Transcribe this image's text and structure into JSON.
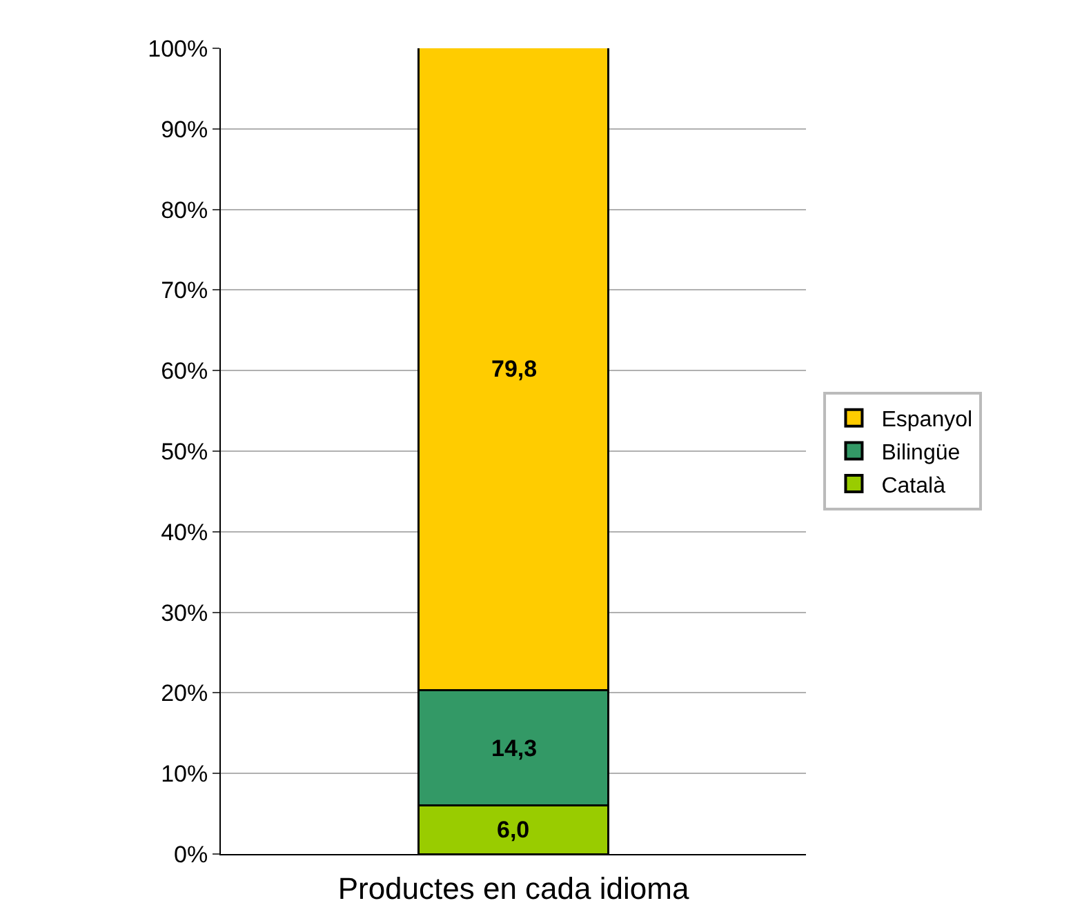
{
  "chart_data": {
    "type": "bar",
    "stacked": true,
    "xlabel": "Productes en cada idioma",
    "categories": [
      null
    ],
    "series": [
      {
        "name": "Català",
        "color": "#99cc00",
        "values": [
          6.0
        ],
        "value_labels": [
          "6,0"
        ]
      },
      {
        "name": "Bilingüe",
        "color": "#339966",
        "values": [
          14.3
        ],
        "value_labels": [
          "14,3"
        ]
      },
      {
        "name": "Espanyol",
        "color": "#ffcc00",
        "values": [
          79.8
        ],
        "value_labels": [
          "79,8"
        ]
      }
    ],
    "ylim": [
      0,
      100
    ],
    "yticks": [
      {
        "value": 0,
        "label": "0%"
      },
      {
        "value": 10,
        "label": "10%"
      },
      {
        "value": 20,
        "label": "20%"
      },
      {
        "value": 30,
        "label": "30%"
      },
      {
        "value": 40,
        "label": "40%"
      },
      {
        "value": 50,
        "label": "50%"
      },
      {
        "value": 60,
        "label": "60%"
      },
      {
        "value": 70,
        "label": "70%"
      },
      {
        "value": 80,
        "label": "80%"
      },
      {
        "value": 90,
        "label": "90%"
      },
      {
        "value": 100,
        "label": "100%"
      }
    ],
    "grid": "y",
    "legend": "right"
  }
}
